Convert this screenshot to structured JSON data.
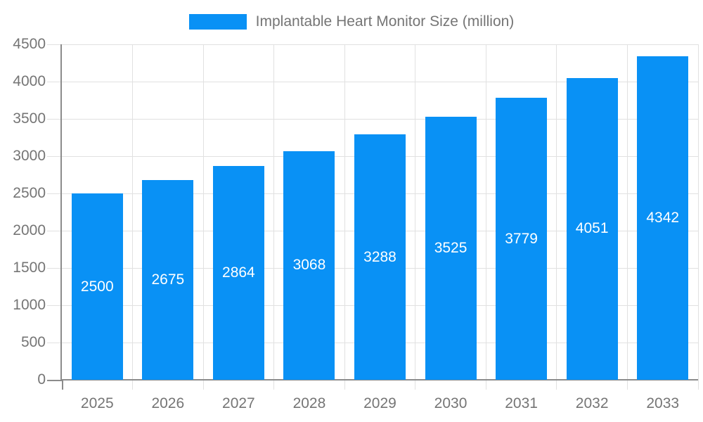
{
  "legend": {
    "label": "Implantable Heart Monitor Size (million)"
  },
  "chart_data": {
    "type": "bar",
    "title": "Implantable Heart Monitor Size (million)",
    "categories": [
      "2025",
      "2026",
      "2027",
      "2028",
      "2029",
      "2030",
      "2031",
      "2032",
      "2033"
    ],
    "values": [
      2500,
      2675,
      2864,
      3068,
      3288,
      3525,
      3779,
      4051,
      4342
    ],
    "xlabel": "",
    "ylabel": "",
    "ylim": [
      0,
      4500
    ],
    "yticks": [
      0,
      500,
      1000,
      1500,
      2000,
      2500,
      3000,
      3500,
      4000,
      4500
    ],
    "grid": true,
    "legend_position": "top-center",
    "value_label_position": "inside-center",
    "colors": {
      "bar": "#0991f5",
      "grid": "#e1e1e1",
      "axis": "#8c8c8c",
      "label_text": "#757575",
      "value_text": "#ffffff",
      "background": "#ffffff"
    }
  }
}
